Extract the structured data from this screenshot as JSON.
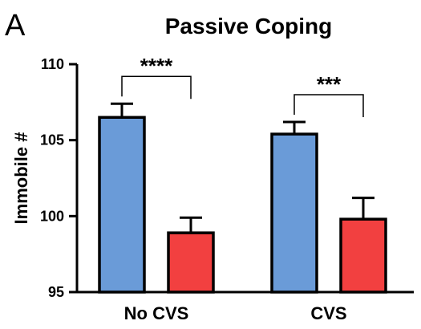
{
  "panel_letter": "A",
  "chart_data": {
    "type": "bar",
    "title": "Passive Coping",
    "xlabel": "",
    "ylabel": "Immobile #",
    "ylim": [
      95,
      110
    ],
    "yticks": [
      "95",
      "100",
      "105",
      "110"
    ],
    "categories": [
      "No CVS",
      "CVS"
    ],
    "series": [
      {
        "color": "#6a9bd8",
        "values": [
          106.5,
          105.4
        ],
        "errors": [
          0.9,
          0.8
        ]
      },
      {
        "color": "#f24040",
        "values": [
          98.9,
          99.8
        ],
        "errors": [
          1.0,
          1.4
        ]
      }
    ],
    "significance": [
      {
        "category": "No CVS",
        "label": "****"
      },
      {
        "category": "CVS",
        "label": "***"
      }
    ],
    "grid": false,
    "legend": "none"
  }
}
